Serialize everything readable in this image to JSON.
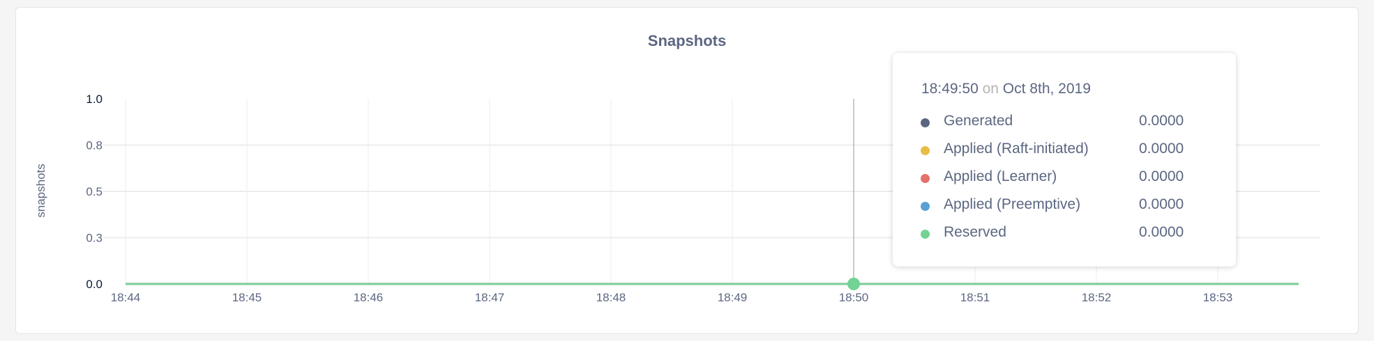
{
  "chart_data": {
    "type": "line",
    "title": "Snapshots",
    "ylabel": "snapshots",
    "xlabel": "",
    "ylim": [
      0,
      1
    ],
    "y_ticks": [
      {
        "value": 0,
        "label": "0.0"
      },
      {
        "value": 0.25,
        "label": "0.3"
      },
      {
        "value": 0.5,
        "label": "0.5"
      },
      {
        "value": 0.75,
        "label": "0.8"
      },
      {
        "value": 1,
        "label": "1.0"
      }
    ],
    "x_ticks": [
      "18:44",
      "18:45",
      "18:46",
      "18:47",
      "18:48",
      "18:49",
      "18:50",
      "18:51",
      "18:52",
      "18:53"
    ],
    "xlim": [
      "18:44",
      "18:53:40"
    ],
    "grid": true,
    "series": [
      {
        "name": "Generated",
        "color": "#5b6680",
        "x": [
          "18:44",
          "18:53:40"
        ],
        "values": [
          0,
          0
        ]
      },
      {
        "name": "Applied (Raft-initiated)",
        "color": "#e9bd45",
        "x": [
          "18:44",
          "18:53:40"
        ],
        "values": [
          0,
          0
        ]
      },
      {
        "name": "Applied (Learner)",
        "color": "#e5716b",
        "x": [
          "18:44",
          "18:53:40"
        ],
        "values": [
          0,
          0
        ]
      },
      {
        "name": "Applied (Preemptive)",
        "color": "#5b9fd3",
        "x": [
          "18:44",
          "18:53:40"
        ],
        "values": [
          0,
          0
        ]
      },
      {
        "name": "Reserved",
        "color": "#72d394",
        "x": [
          "18:44",
          "18:53:40"
        ],
        "values": [
          0,
          0
        ]
      }
    ]
  },
  "tooltip": {
    "time": "18:49:50",
    "on": "on",
    "date": "Oct 8th, 2019",
    "rows": [
      {
        "label": "Generated",
        "value": "0.0000",
        "color": "#5b6680"
      },
      {
        "label": "Applied (Raft-initiated)",
        "value": "0.0000",
        "color": "#e9bd45"
      },
      {
        "label": "Applied (Learner)",
        "value": "0.0000",
        "color": "#e5716b"
      },
      {
        "label": "Applied (Preemptive)",
        "value": "0.0000",
        "color": "#5b9fd3"
      },
      {
        "label": "Reserved",
        "value": "0.0000",
        "color": "#72d394"
      }
    ]
  }
}
